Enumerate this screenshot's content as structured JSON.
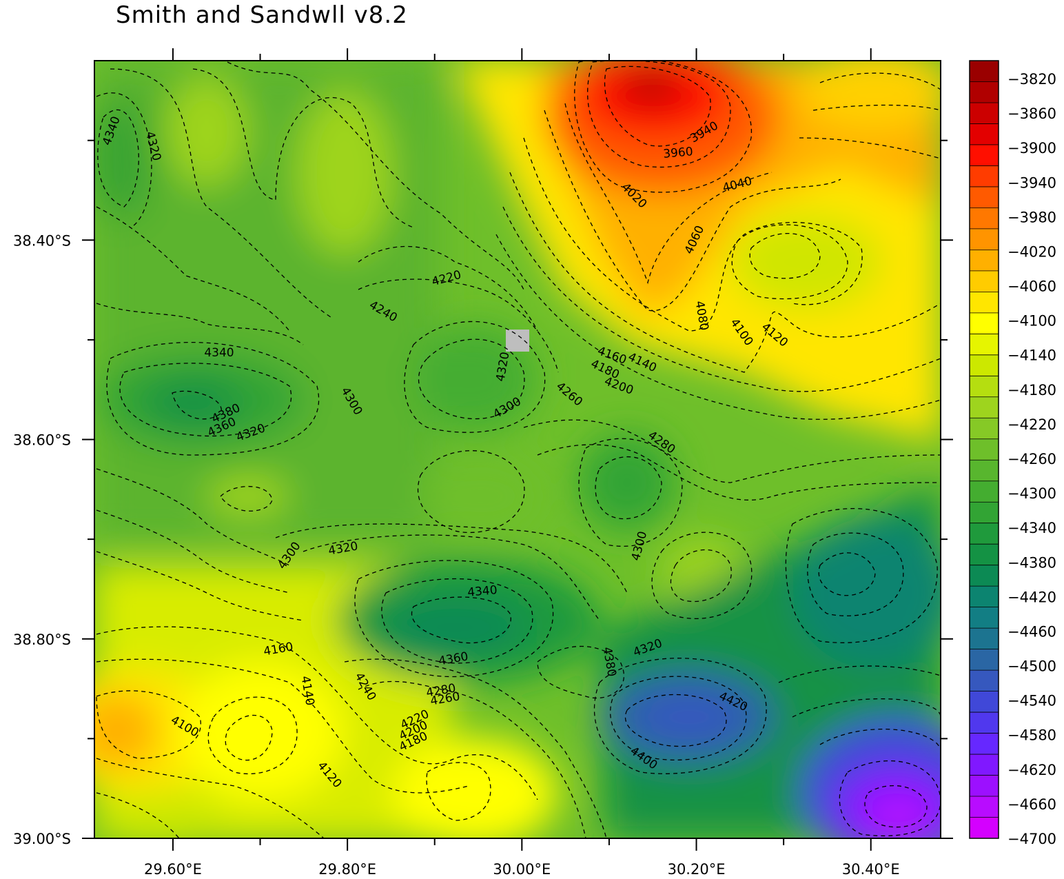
{
  "title": "Smith and Sandwll v8.2",
  "x_ticks": [
    {
      "label": "29.60°E",
      "lon": 29.6
    },
    {
      "label": "29.80°E",
      "lon": 29.8
    },
    {
      "label": "30.00°E",
      "lon": 30.0
    },
    {
      "label": "30.20°E",
      "lon": 30.2
    },
    {
      "label": "30.40°E",
      "lon": 30.4
    }
  ],
  "y_ticks": [
    {
      "label": "38.40°S",
      "lat": -38.4
    },
    {
      "label": "38.60°S",
      "lat": -38.6
    },
    {
      "label": "38.80°S",
      "lat": -38.8
    },
    {
      "label": "39.00°S",
      "lat": -39.0
    }
  ],
  "lon_range": [
    29.51,
    30.48
  ],
  "lat_range": [
    -39.0,
    -38.22
  ],
  "colorbar": {
    "labels": [
      "-3820",
      "-3860",
      "-3900",
      "-3940",
      "-3980",
      "-4020",
      "-4060",
      "-4100",
      "-4140",
      "-4180",
      "-4220",
      "-4260",
      "-4300",
      "-4340",
      "-4380",
      "-4420",
      "-4460",
      "-4500",
      "-4540",
      "-4580",
      "-4620",
      "-4660",
      "-4700"
    ],
    "colors": [
      "#9a0000",
      "#b00000",
      "#cc0000",
      "#e30000",
      "#ff0f00",
      "#ff3c00",
      "#ff5a00",
      "#ff7800",
      "#ff9400",
      "#ffb000",
      "#ffcc00",
      "#ffe600",
      "#ffff00",
      "#e6f500",
      "#cce800",
      "#b5de10",
      "#9ed41e",
      "#86c926",
      "#6ebf2a",
      "#58b62e",
      "#44ad30",
      "#32a434",
      "#1f9a3c",
      "#149244",
      "#0c8a54",
      "#0c8470",
      "#127e84",
      "#1c7490",
      "#2a66a4",
      "#3658be",
      "#4048d8",
      "#5038ee",
      "#6628ff",
      "#8018ff",
      "#9c10ff",
      "#b80cff",
      "#d400ff"
    ]
  },
  "contour_labels": [
    {
      "text": "4340",
      "x": 162,
      "y": 190,
      "rot": -70
    },
    {
      "text": "4320",
      "x": 222,
      "y": 212,
      "rot": 75
    },
    {
      "text": "4220",
      "x": 648,
      "y": 404,
      "rot": -15
    },
    {
      "text": "4240",
      "x": 556,
      "y": 452,
      "rot": 30
    },
    {
      "text": "4340",
      "x": 318,
      "y": 512,
      "rot": 0
    },
    {
      "text": "4300",
      "x": 510,
      "y": 582,
      "rot": 60
    },
    {
      "text": "4320",
      "x": 730,
      "y": 532,
      "rot": -80
    },
    {
      "text": "4300",
      "x": 736,
      "y": 592,
      "rot": -30
    },
    {
      "text": "4380",
      "x": 328,
      "y": 600,
      "rot": -25
    },
    {
      "text": "4360",
      "x": 322,
      "y": 620,
      "rot": -25
    },
    {
      "text": "4320",
      "x": 364,
      "y": 628,
      "rot": -20
    },
    {
      "text": "4260",
      "x": 826,
      "y": 572,
      "rot": 40
    },
    {
      "text": "4160",
      "x": 888,
      "y": 516,
      "rot": 20
    },
    {
      "text": "4140",
      "x": 932,
      "y": 526,
      "rot": 25
    },
    {
      "text": "4180",
      "x": 878,
      "y": 536,
      "rot": 25
    },
    {
      "text": "4200",
      "x": 898,
      "y": 560,
      "rot": 20
    },
    {
      "text": "3940",
      "x": 1022,
      "y": 192,
      "rot": -30
    },
    {
      "text": "3960",
      "x": 984,
      "y": 222,
      "rot": -5
    },
    {
      "text": "4020",
      "x": 920,
      "y": 284,
      "rot": 45
    },
    {
      "text": "4040",
      "x": 1070,
      "y": 268,
      "rot": -15
    },
    {
      "text": "4060",
      "x": 1008,
      "y": 348,
      "rot": -65
    },
    {
      "text": "4080",
      "x": 1018,
      "y": 458,
      "rot": 80
    },
    {
      "text": "4100",
      "x": 1076,
      "y": 482,
      "rot": 55
    },
    {
      "text": "4120",
      "x": 1124,
      "y": 486,
      "rot": 40
    },
    {
      "text": "4280",
      "x": 960,
      "y": 642,
      "rot": 35
    },
    {
      "text": "4300",
      "x": 928,
      "y": 792,
      "rot": -75
    },
    {
      "text": "4320",
      "x": 498,
      "y": 796,
      "rot": -10
    },
    {
      "text": "4300",
      "x": 420,
      "y": 806,
      "rot": -55
    },
    {
      "text": "4340",
      "x": 700,
      "y": 858,
      "rot": -5
    },
    {
      "text": "4360",
      "x": 658,
      "y": 956,
      "rot": -10
    },
    {
      "text": "4320",
      "x": 940,
      "y": 940,
      "rot": -20
    },
    {
      "text": "4380",
      "x": 884,
      "y": 960,
      "rot": 80
    },
    {
      "text": "4160",
      "x": 404,
      "y": 942,
      "rot": -10
    },
    {
      "text": "4140",
      "x": 446,
      "y": 1002,
      "rot": 80
    },
    {
      "text": "4240",
      "x": 530,
      "y": 996,
      "rot": 60
    },
    {
      "text": "4280",
      "x": 640,
      "y": 1002,
      "rot": -10
    },
    {
      "text": "4260",
      "x": 646,
      "y": 1014,
      "rot": -10
    },
    {
      "text": "4220",
      "x": 602,
      "y": 1044,
      "rot": -25
    },
    {
      "text": "4200",
      "x": 600,
      "y": 1060,
      "rot": -25
    },
    {
      "text": "4180",
      "x": 600,
      "y": 1076,
      "rot": -25
    },
    {
      "text": "4100",
      "x": 268,
      "y": 1054,
      "rot": 30
    },
    {
      "text": "4120",
      "x": 478,
      "y": 1124,
      "rot": 50
    },
    {
      "text": "4420",
      "x": 1064,
      "y": 1018,
      "rot": 25
    },
    {
      "text": "4400",
      "x": 934,
      "y": 1100,
      "rot": 35
    }
  ]
}
